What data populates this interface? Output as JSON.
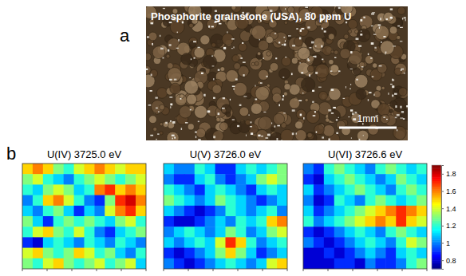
{
  "panel_a": {
    "label": "a",
    "caption": "Phosphorite grainstone (USA), 80 ppm U",
    "scale_bar": "1mm"
  },
  "panel_b_label": "b",
  "colorbar": {
    "range": [
      0.7,
      1.9
    ],
    "ticks": [
      0.8,
      1,
      1.2,
      1.4,
      1.6,
      1.8
    ]
  },
  "chart_data": [
    {
      "type": "heatmap",
      "title": "U(IV) 3725.0 eV",
      "tick_labels": false,
      "cells": [
        [
          1.5,
          1.6,
          1.5,
          1.3,
          1.2,
          1.4,
          1.5,
          1.6,
          1.5,
          1.4,
          1.5,
          1.5
        ],
        [
          1.3,
          1.4,
          1.2,
          1.1,
          1.0,
          1.2,
          1.3,
          1.4,
          1.3,
          1.2,
          1.3,
          1.4
        ],
        [
          1.2,
          1.1,
          1.3,
          1.4,
          1.3,
          1.1,
          1.2,
          1.6,
          1.7,
          1.5,
          1.6,
          1.5
        ],
        [
          1.0,
          1.2,
          1.5,
          1.6,
          1.4,
          1.2,
          1.0,
          0.9,
          1.3,
          1.7,
          1.8,
          1.6
        ],
        [
          1.1,
          1.0,
          1.2,
          1.3,
          1.1,
          0.9,
          1.1,
          1.0,
          1.4,
          1.6,
          1.7,
          1.5
        ],
        [
          1.3,
          1.1,
          0.9,
          1.2,
          1.3,
          1.2,
          1.3,
          1.2,
          1.1,
          1.3,
          1.4,
          1.2
        ],
        [
          1.2,
          1.4,
          1.5,
          1.3,
          1.2,
          1.4,
          1.2,
          1.0,
          0.9,
          1.1,
          1.2,
          1.3
        ],
        [
          0.9,
          0.8,
          1.1,
          1.2,
          1.1,
          1.0,
          1.2,
          1.1,
          1.0,
          1.2,
          1.1,
          1.0
        ],
        [
          1.4,
          1.5,
          1.3,
          1.2,
          1.3,
          1.5,
          1.4,
          1.2,
          1.3,
          1.1,
          1.0,
          1.2
        ],
        [
          1.3,
          1.2,
          1.4,
          1.5,
          1.3,
          1.2,
          1.3,
          1.4,
          1.2,
          1.3,
          1.4,
          1.1
        ]
      ]
    },
    {
      "type": "heatmap",
      "title": "U(V) 3726.0 eV",
      "tick_labels": false,
      "cells": [
        [
          1.1,
          1.0,
          1.0,
          1.2,
          1.1,
          0.9,
          0.9,
          1.1,
          1.2,
          1.1,
          1.2,
          1.3
        ],
        [
          1.0,
          0.9,
          0.9,
          1.1,
          1.2,
          1.0,
          0.9,
          1.0,
          1.1,
          1.3,
          1.4,
          1.3
        ],
        [
          1.2,
          1.1,
          1.0,
          0.9,
          1.1,
          1.2,
          1.1,
          1.0,
          0.9,
          1.1,
          1.2,
          1.1
        ],
        [
          1.3,
          1.2,
          1.1,
          1.0,
          1.1,
          1.3,
          1.2,
          1.1,
          1.0,
          0.9,
          1.0,
          1.1
        ],
        [
          1.1,
          1.0,
          0.9,
          0.8,
          0.9,
          1.0,
          1.2,
          1.1,
          1.0,
          1.1,
          1.2,
          1.0
        ],
        [
          0.9,
          0.8,
          0.8,
          0.9,
          1.0,
          1.1,
          1.0,
          1.2,
          1.1,
          1.2,
          1.5,
          1.6
        ],
        [
          1.0,
          1.1,
          1.2,
          1.1,
          1.0,
          1.1,
          1.3,
          1.2,
          1.0,
          1.1,
          1.3,
          1.4
        ],
        [
          1.1,
          1.0,
          1.1,
          1.2,
          1.1,
          1.4,
          1.7,
          1.5,
          1.2,
          1.0,
          1.1,
          1.2
        ],
        [
          0.9,
          0.8,
          0.9,
          1.0,
          1.1,
          1.3,
          1.5,
          1.3,
          1.1,
          0.9,
          1.0,
          1.1
        ],
        [
          1.0,
          0.9,
          0.8,
          0.9,
          1.0,
          1.1,
          1.2,
          1.1,
          1.0,
          1.1,
          1.4,
          1.5
        ]
      ]
    },
    {
      "type": "heatmap",
      "title": "U(VI) 3726.6 eV",
      "tick_labels": false,
      "cells": [
        [
          1.0,
          0.9,
          1.2,
          1.3,
          1.2,
          1.1,
          1.0,
          1.2,
          1.3,
          1.2,
          1.1,
          1.2
        ],
        [
          0.9,
          0.8,
          1.1,
          1.2,
          1.3,
          1.2,
          1.1,
          1.0,
          1.1,
          1.3,
          1.2,
          1.1
        ],
        [
          1.1,
          0.9,
          1.0,
          1.1,
          1.2,
          1.3,
          1.2,
          1.1,
          1.0,
          1.2,
          1.3,
          1.2
        ],
        [
          1.0,
          0.8,
          0.9,
          1.2,
          1.1,
          1.0,
          1.2,
          1.3,
          1.2,
          1.1,
          1.2,
          1.3
        ],
        [
          1.1,
          0.9,
          1.0,
          1.1,
          1.2,
          1.3,
          1.4,
          1.5,
          1.6,
          1.7,
          1.6,
          1.5
        ],
        [
          1.2,
          1.0,
          1.1,
          1.2,
          1.3,
          1.4,
          1.5,
          1.6,
          1.5,
          1.7,
          1.5,
          1.4
        ],
        [
          0.9,
          0.8,
          0.9,
          1.0,
          1.1,
          1.2,
          1.1,
          1.0,
          1.2,
          1.3,
          1.2,
          1.1
        ],
        [
          1.0,
          0.9,
          0.8,
          0.9,
          1.0,
          1.1,
          1.2,
          1.1,
          1.0,
          1.2,
          1.4,
          1.3
        ],
        [
          0.8,
          0.8,
          0.9,
          0.8,
          0.9,
          1.0,
          1.1,
          1.0,
          0.9,
          1.1,
          1.2,
          1.1
        ],
        [
          0.8,
          0.8,
          0.8,
          0.9,
          0.9,
          0.8,
          1.0,
          0.9,
          0.9,
          1.0,
          1.2,
          1.3
        ]
      ]
    }
  ]
}
